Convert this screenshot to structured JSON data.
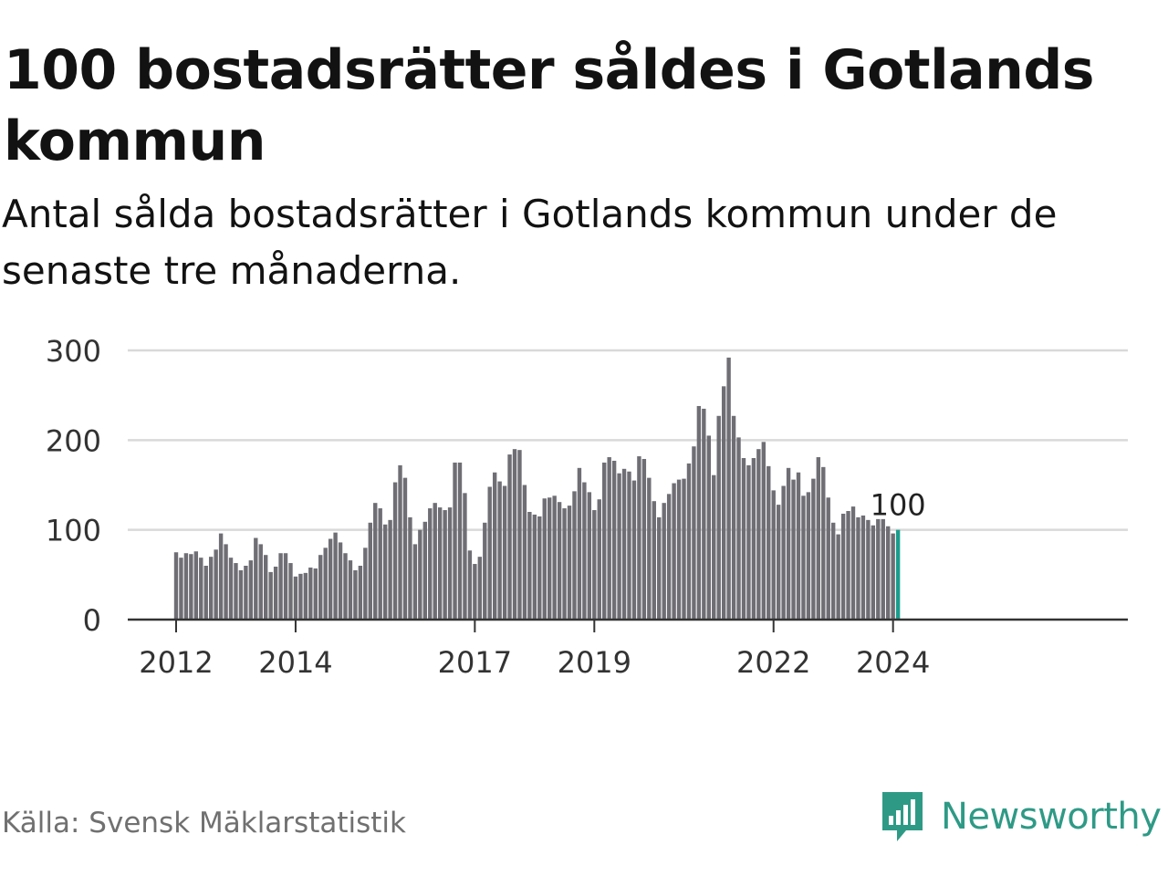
{
  "title": "100 bostadsrätter såldes i Gotlands kommun",
  "subtitle": "Antal sålda bostadsrätter i Gotlands kommun under de senaste tre månaderna.",
  "source": "Källa: Svensk Mäklarstatistik",
  "brand": {
    "name": "Newsworthy",
    "icon": "newsworthy-logo-icon"
  },
  "colors": {
    "bar": "#6f6e74",
    "highlight": "#1a9d8d",
    "grid": "#d9d9d9",
    "axis": "#333333",
    "brand": "#2e9a86"
  },
  "chart_data": {
    "type": "bar",
    "x_start": "2012-01",
    "x_interval": "month",
    "x_ticks": [
      "2012",
      "2014",
      "2017",
      "2019",
      "2022",
      "2024"
    ],
    "y_ticks": [
      0,
      100,
      200,
      300
    ],
    "ylim": [
      0,
      300
    ],
    "grid": true,
    "highlight_label": "100",
    "values": [
      75,
      69,
      74,
      73,
      76,
      69,
      60,
      70,
      78,
      96,
      84,
      69,
      63,
      55,
      60,
      66,
      91,
      84,
      72,
      53,
      59,
      74,
      74,
      63,
      48,
      51,
      52,
      58,
      57,
      72,
      80,
      90,
      97,
      86,
      74,
      66,
      55,
      60,
      80,
      108,
      130,
      124,
      106,
      111,
      153,
      172,
      158,
      114,
      84,
      100,
      109,
      124,
      130,
      125,
      122,
      125,
      175,
      175,
      141,
      77,
      62,
      70,
      108,
      148,
      164,
      154,
      149,
      184,
      190,
      189,
      150,
      120,
      117,
      115,
      135,
      136,
      138,
      131,
      124,
      127,
      143,
      169,
      153,
      142,
      122,
      134,
      175,
      181,
      177,
      163,
      168,
      165,
      155,
      182,
      179,
      158,
      132,
      114,
      130,
      140,
      152,
      156,
      157,
      174,
      193,
      238,
      235,
      205,
      161,
      227,
      260,
      292,
      227,
      203,
      180,
      172,
      180,
      190,
      198,
      171,
      144,
      128,
      149,
      169,
      156,
      164,
      138,
      142,
      157,
      181,
      170,
      136,
      108,
      95,
      118,
      121,
      126,
      114,
      116,
      111,
      105,
      112,
      112,
      104,
      96,
      100
    ]
  }
}
